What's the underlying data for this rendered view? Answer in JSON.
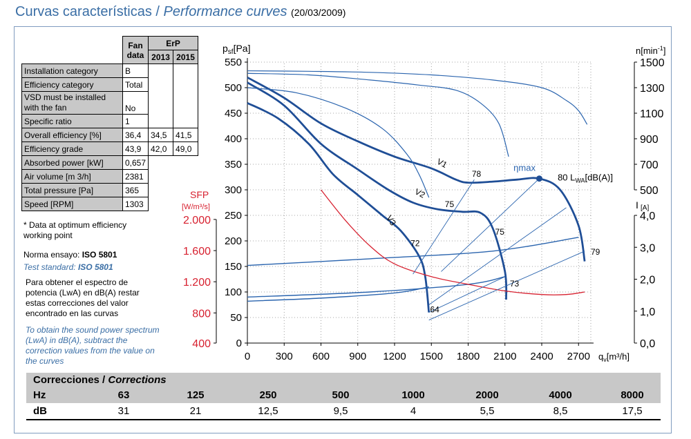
{
  "header": {
    "title_es": "Curvas características",
    "title_sep": " / ",
    "title_en": "Performance curves",
    "date": "(20/03/2009)"
  },
  "spec_table": {
    "col_fan": [
      "Fan",
      "data"
    ],
    "col_erp": "ErP",
    "col_2013": "2013",
    "col_2015": "2015",
    "rows": [
      {
        "label": "Installation category",
        "fan": "B",
        "y2013": "",
        "y2015": ""
      },
      {
        "label": "Efficiency category",
        "fan": "Total",
        "y2013": "",
        "y2015": ""
      },
      {
        "label": "VSD must be installed with the fan",
        "fan": "No",
        "y2013": "",
        "y2015": ""
      },
      {
        "label": "Specific ratio",
        "fan": "1",
        "y2013": "",
        "y2015": ""
      },
      {
        "label": "Overall efficiency [%]",
        "fan": "36,4",
        "y2013": "34,5",
        "y2015": "41,5"
      },
      {
        "label": "Efficiency grade",
        "fan": "43,9",
        "y2013": "42,0",
        "y2015": "49,0"
      },
      {
        "label": "Absorbed power [kW]",
        "fan": "0,657",
        "y2013": "",
        "y2015": ""
      },
      {
        "label": "Air volume [m 3/h]",
        "fan": "2381",
        "y2013": "",
        "y2015": ""
      },
      {
        "label": "Total pressure [Pa]",
        "fan": "365",
        "y2013": "",
        "y2015": ""
      },
      {
        "label": "Speed [RPM]",
        "fan": "1303",
        "y2013": "",
        "y2015": ""
      }
    ]
  },
  "notes": {
    "optimum": "* Data at optimum efficiency working point",
    "norma_prefix": "Norma ensayo: ",
    "norma_value": "ISO 5801",
    "test_prefix": "Test standard: ",
    "test_value": "ISO 5801",
    "es_text": "Para obtener el espectro de potencia (LwA) en dB(A) restar estas correcciones del valor encontrado en las curvas",
    "en_text": "To obtain the sound power spectrum (LwA) in dB(A), subtract the correction values from the value on the curves"
  },
  "corrections": {
    "title_es": "Correcciones / ",
    "title_en": "Corrections",
    "hz_label": "Hz",
    "db_label": "dB",
    "hz": [
      "63",
      "125",
      "250",
      "500",
      "1000",
      "2000",
      "4000",
      "8000"
    ],
    "db": [
      "31",
      "21",
      "12,5",
      "9,5",
      "4",
      "5,5",
      "8,5",
      "17,5"
    ]
  },
  "chart_data": {
    "type": "line",
    "xlabel": "q",
    "xlabel_sub": "v",
    "xlabel_unit": "[m³/h]",
    "ylabel": "p",
    "ylabel_sub": "sf",
    "ylabel_unit": "[Pa]",
    "rpm_label": "n",
    "rpm_unit": "[min",
    "rpm_sup": "-1",
    "rpm_close": "]",
    "current_label": "I",
    "current_unit": "[A]",
    "sfp_label": "SFP",
    "sfp_unit": "[W/m³/s]",
    "xlim": [
      0,
      2800
    ],
    "ylim": [
      0,
      550
    ],
    "x_ticks": [
      "0",
      "300",
      "600",
      "900",
      "1200",
      "1500",
      "1800",
      "2100",
      "2400",
      "2700"
    ],
    "y_ticks": [
      "0",
      "50",
      "100",
      "150",
      "200",
      "250",
      "300",
      "350",
      "400",
      "450",
      "500",
      "550"
    ],
    "rpm_ticks": [
      {
        "label": "1500",
        "p": 550
      },
      {
        "label": "1300",
        "p": 500
      },
      {
        "label": "1100",
        "p": 450
      },
      {
        "label": "900",
        "p": 400
      },
      {
        "label": "700",
        "p": 350
      },
      {
        "label": "500",
        "p": 300
      }
    ],
    "current_ticks": [
      {
        "label": "4,0",
        "p": 250
      },
      {
        "label": "3,0",
        "p": 187.5
      },
      {
        "label": "2,0",
        "p": 125
      },
      {
        "label": "1,0",
        "p": 62.5
      },
      {
        "label": "0,0",
        "p": 0
      }
    ],
    "sfp_ticks": [
      {
        "label": "2.000",
        "p": 242
      },
      {
        "label": "1.600",
        "p": 181
      },
      {
        "label": "1.200",
        "p": 120
      },
      {
        "label": "800",
        "p": 59
      },
      {
        "label": "400",
        "p": 0
      }
    ],
    "series": [
      {
        "name": "",
        "role": "main",
        "points": [
          [
            0,
            520
          ],
          [
            300,
            480
          ],
          [
            600,
            430
          ],
          [
            900,
            395
          ],
          [
            1200,
            365
          ],
          [
            1500,
            342
          ],
          [
            1700,
            320
          ],
          [
            1800,
            314
          ],
          [
            2000,
            316
          ],
          [
            2200,
            320
          ],
          [
            2380,
            322
          ],
          [
            2550,
            300
          ],
          [
            2700,
            230
          ],
          [
            2750,
            160
          ]
        ]
      },
      {
        "name": "",
        "role": "main",
        "points": [
          [
            0,
            510
          ],
          [
            300,
            465
          ],
          [
            600,
            390
          ],
          [
            900,
            340
          ],
          [
            1150,
            300
          ],
          [
            1350,
            275
          ],
          [
            1550,
            262
          ],
          [
            1750,
            257
          ],
          [
            1900,
            255
          ],
          [
            2000,
            225
          ],
          [
            2100,
            140
          ],
          [
            2110,
            85
          ]
        ]
      },
      {
        "name": "",
        "role": "main",
        "points": [
          [
            0,
            470
          ],
          [
            250,
            440
          ],
          [
            500,
            390
          ],
          [
            700,
            330
          ],
          [
            900,
            290
          ],
          [
            1100,
            250
          ],
          [
            1250,
            220
          ],
          [
            1400,
            170
          ],
          [
            1450,
            130
          ],
          [
            1480,
            60
          ]
        ]
      },
      {
        "name": "",
        "role": "rpm",
        "points": [
          [
            0,
            533
          ],
          [
            500,
            532
          ],
          [
            1000,
            530
          ],
          [
            1500,
            525
          ],
          [
            2000,
            515
          ],
          [
            2400,
            500
          ],
          [
            2600,
            475
          ],
          [
            2700,
            455
          ],
          [
            2770,
            428
          ]
        ]
      },
      {
        "name": "",
        "role": "rpm",
        "points": [
          [
            0,
            528
          ],
          [
            500,
            525
          ],
          [
            1000,
            515
          ],
          [
            1400,
            505
          ],
          [
            1700,
            495
          ],
          [
            1900,
            470
          ],
          [
            2050,
            430
          ],
          [
            2130,
            365
          ]
        ]
      },
      {
        "name": "",
        "role": "rpm",
        "points": [
          [
            0,
            500
          ],
          [
            400,
            490
          ],
          [
            800,
            460
          ],
          [
            1100,
            420
          ],
          [
            1300,
            370
          ],
          [
            1400,
            330
          ],
          [
            1480,
            285
          ]
        ]
      },
      {
        "name": "",
        "role": "current",
        "points": [
          [
            0,
            152
          ],
          [
            1000,
            165
          ],
          [
            2000,
            180
          ],
          [
            2700,
            207
          ]
        ]
      },
      {
        "name": "",
        "role": "current",
        "points": [
          [
            0,
            90
          ],
          [
            1000,
            100
          ],
          [
            1800,
            115
          ],
          [
            2100,
            130
          ]
        ]
      },
      {
        "name": "",
        "role": "current",
        "points": [
          [
            0,
            82
          ],
          [
            600,
            88
          ],
          [
            1200,
            98
          ],
          [
            1480,
            110
          ]
        ]
      },
      {
        "name": "",
        "role": "sfp",
        "points": [
          [
            600,
            300
          ],
          [
            800,
            240
          ],
          [
            1000,
            190
          ],
          [
            1200,
            155
          ],
          [
            1500,
            130
          ],
          [
            1800,
            115
          ],
          [
            2100,
            102
          ],
          [
            2400,
            95
          ],
          [
            2600,
            95
          ],
          [
            2750,
            100
          ]
        ]
      },
      {
        "name": "",
        "role": "eff",
        "points": [
          [
            1480,
            45
          ],
          [
            2750,
            180
          ]
        ]
      },
      {
        "name": "",
        "role": "eff",
        "points": [
          [
            1480,
            60
          ],
          [
            2100,
            130
          ]
        ]
      },
      {
        "name": "",
        "role": "eff",
        "points": [
          [
            1480,
            75
          ],
          [
            2600,
            265
          ]
        ]
      },
      {
        "name": "",
        "role": "eff",
        "points": [
          [
            1350,
            135
          ],
          [
            1850,
            320
          ]
        ]
      },
      {
        "name": "",
        "role": "eff",
        "points": [
          [
            1580,
            140
          ],
          [
            2380,
            322
          ]
        ]
      }
    ],
    "curve_labels": [
      {
        "text": "V1",
        "x": 1540,
        "y": 352,
        "rotate": 28
      },
      {
        "text": "V2",
        "x": 1360,
        "y": 293,
        "rotate": 28
      },
      {
        "text": "V3",
        "x": 1130,
        "y": 245,
        "rotate": 55
      },
      {
        "text": "78",
        "x": 1830,
        "y": 326,
        "rotate": 0
      },
      {
        "text": "75",
        "x": 1610,
        "y": 266,
        "rotate": 0
      },
      {
        "text": "75",
        "x": 2020,
        "y": 212,
        "rotate": 0
      },
      {
        "text": "72",
        "x": 1330,
        "y": 190,
        "rotate": 0
      },
      {
        "text": "73",
        "x": 2140,
        "y": 111,
        "rotate": 0
      },
      {
        "text": "64",
        "x": 1490,
        "y": 60,
        "rotate": 0
      },
      {
        "text": "79",
        "x": 2800,
        "y": 173,
        "rotate": 0
      }
    ],
    "eta_label": {
      "text": "ηmax",
      "x": 2170,
      "y": 337
    },
    "lwa_label": {
      "text": "80 L",
      "sub": "WA",
      "rest": "[dB(A)]",
      "x": 2530,
      "y": 318
    },
    "eta_point": {
      "x": 2380,
      "y": 322
    },
    "colors": {
      "main": "#1f4e96",
      "thin": "#2a64ae",
      "sfp": "#d7202f",
      "axis": "#000000",
      "grid": "#888888"
    }
  }
}
